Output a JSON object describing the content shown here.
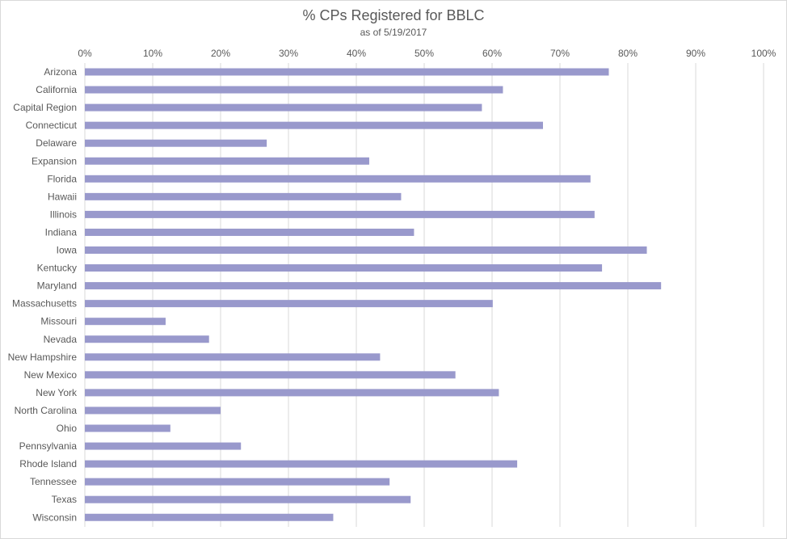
{
  "chart_data": {
    "type": "bar",
    "orientation": "horizontal",
    "title": "% CPs Registered for BBLC",
    "subtitle": "as of 5/19/2017",
    "xlabel": "",
    "ylabel": "",
    "xlim": [
      0,
      100
    ],
    "x_ticks": [
      "0%",
      "10%",
      "20%",
      "30%",
      "40%",
      "50%",
      "60%",
      "70%",
      "80%",
      "90%",
      "100%"
    ],
    "x_axis_position": "top",
    "grid": true,
    "legend": "none",
    "bar_color": "#9999cc",
    "categories": [
      "Arizona",
      "California",
      "Capital Region",
      "Connecticut",
      "Delaware",
      "Expansion",
      "Florida",
      "Hawaii",
      "Illinois",
      "Indiana",
      "Iowa",
      "Kentucky",
      "Maryland",
      "Massachusetts",
      "Missouri",
      "Nevada",
      "New Hampshire",
      "New Mexico",
      "New York",
      "North Carolina",
      "Ohio",
      "Pennsylvania",
      "Rhode Island",
      "Tennessee",
      "Texas",
      "Wisconsin"
    ],
    "values": [
      77.2,
      61.6,
      58.5,
      67.5,
      26.8,
      41.9,
      74.5,
      46.6,
      75.1,
      48.5,
      82.8,
      76.2,
      84.9,
      60.1,
      11.9,
      18.3,
      43.5,
      54.6,
      61.0,
      20.0,
      12.6,
      23.0,
      63.7,
      44.9,
      48.0,
      36.6
    ]
  }
}
